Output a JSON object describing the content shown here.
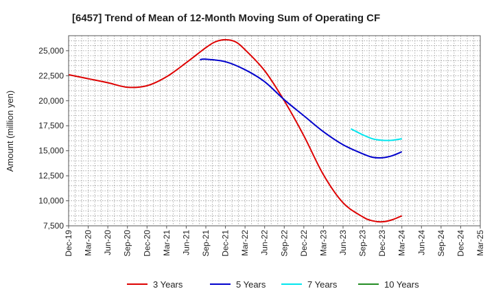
{
  "chart_data": {
    "type": "line",
    "title": "[6457]  Trend of Mean of 12-Month Moving Sum of Operating CF",
    "xlabel": "",
    "ylabel": "Amount (million yen)",
    "ylim": [
      7500,
      26500
    ],
    "yticks": [
      7500,
      10000,
      12500,
      15000,
      17500,
      20000,
      22500,
      25000
    ],
    "ytick_labels": [
      "7,500",
      "10,000",
      "12,500",
      "15,000",
      "17,500",
      "20,000",
      "22,500",
      "25,000"
    ],
    "xticks": [
      "Dec-19",
      "Mar-20",
      "Jun-20",
      "Sep-20",
      "Dec-20",
      "Mar-21",
      "Jun-21",
      "Sep-21",
      "Dec-21",
      "Mar-22",
      "Jun-22",
      "Sep-22",
      "Dec-22",
      "Mar-23",
      "Jun-23",
      "Sep-23",
      "Dec-23",
      "Mar-24",
      "Jun-24",
      "Sep-24",
      "Dec-24",
      "Mar-25"
    ],
    "grid": true,
    "legend_position": "bottom",
    "series": [
      {
        "name": "3 Years",
        "color": "#dd0000",
        "x": [
          0,
          1,
          2,
          3,
          4,
          5,
          6,
          7,
          7.5,
          8,
          8.5,
          9,
          10,
          11,
          12,
          13,
          14,
          15,
          15.5,
          16,
          16.5,
          17
        ],
        "values": [
          22600,
          22200,
          21800,
          21350,
          21500,
          22400,
          23800,
          25300,
          25900,
          26100,
          25900,
          25100,
          23000,
          20000,
          16500,
          12600,
          9800,
          8400,
          8000,
          7900,
          8100,
          8500
        ]
      },
      {
        "name": "5 Years",
        "color": "#0000cc",
        "x": [
          6.7,
          7,
          8,
          9,
          10,
          11,
          12,
          13,
          14,
          15,
          15.5,
          16,
          16.5,
          17
        ],
        "values": [
          24100,
          24150,
          23900,
          23100,
          21900,
          20100,
          18500,
          16900,
          15600,
          14700,
          14350,
          14300,
          14500,
          14900
        ]
      },
      {
        "name": "7 Years",
        "color": "#00e5ee",
        "x": [
          14.4,
          15,
          15.5,
          16,
          16.5,
          17
        ],
        "values": [
          17200,
          16600,
          16200,
          16050,
          16050,
          16200
        ]
      },
      {
        "name": "10 Years",
        "color": "#228b22",
        "x": [],
        "values": []
      }
    ]
  }
}
